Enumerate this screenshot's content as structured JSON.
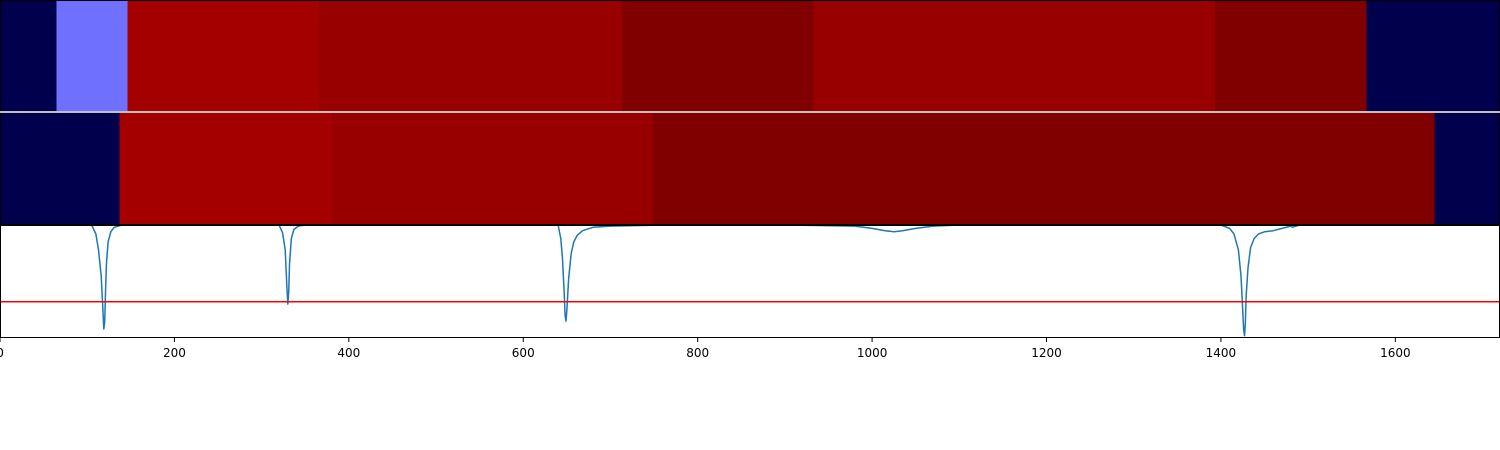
{
  "chart_data": [
    {
      "type": "heatmap",
      "panel": "top-segmentation-band",
      "xlim": [
        0,
        1720
      ],
      "segments": [
        {
          "start": 0,
          "end": 65,
          "color": "#00004c"
        },
        {
          "start": 65,
          "end": 146,
          "color": "#7070ff"
        },
        {
          "start": 146,
          "end": 365,
          "color": "#a40000"
        },
        {
          "start": 365,
          "end": 714,
          "color": "#980000"
        },
        {
          "start": 714,
          "end": 933,
          "color": "#800000"
        },
        {
          "start": 933,
          "end": 1393,
          "color": "#980000"
        },
        {
          "start": 1393,
          "end": 1567,
          "color": "#800000"
        },
        {
          "start": 1567,
          "end": 1720,
          "color": "#00004c"
        }
      ]
    },
    {
      "type": "heatmap",
      "panel": "middle-segmentation-band",
      "xlim": [
        0,
        1720
      ],
      "segments": [
        {
          "start": 0,
          "end": 137,
          "color": "#00004c"
        },
        {
          "start": 137,
          "end": 380,
          "color": "#a40000"
        },
        {
          "start": 380,
          "end": 748,
          "color": "#980000"
        },
        {
          "start": 748,
          "end": 1645,
          "color": "#800000"
        },
        {
          "start": 1645,
          "end": 1720,
          "color": "#00004c"
        }
      ]
    },
    {
      "type": "line",
      "panel": "bottom-signal",
      "xlim": [
        0,
        1720
      ],
      "ylim": [
        -1.0,
        0.0
      ],
      "grid": false,
      "x_ticks": [
        0,
        200,
        400,
        600,
        800,
        1000,
        1200,
        1400,
        1600
      ],
      "x_tick_labels": [
        "0",
        "200",
        "400",
        "600",
        "800",
        "1000",
        "1200",
        "1400",
        "1600"
      ],
      "series": [
        {
          "color": "#1f77b4",
          "x": [
            0,
            105,
            110,
            113,
            116,
            118,
            119,
            120,
            121,
            122,
            124,
            127,
            131,
            140,
            320,
            324,
            327,
            329,
            330,
            331,
            332,
            334,
            337,
            342,
            350,
            640,
            643,
            645,
            647,
            648,
            649,
            650,
            652,
            655,
            658,
            662,
            668,
            680,
            700,
            760,
            900,
            980,
            1000,
            1015,
            1025,
            1035,
            1050,
            1070,
            1100,
            1400,
            1410,
            1415,
            1420,
            1423,
            1425,
            1426,
            1427,
            1428,
            1429,
            1431,
            1434,
            1438,
            1443,
            1450,
            1460,
            1470,
            1480,
            1482,
            1490,
            1720
          ],
          "y": [
            0,
            0,
            -0.08,
            -0.22,
            -0.45,
            -0.75,
            -0.92,
            -0.86,
            -0.6,
            -0.35,
            -0.15,
            -0.06,
            -0.02,
            0,
            0,
            -0.07,
            -0.22,
            -0.55,
            -0.7,
            -0.6,
            -0.35,
            -0.12,
            -0.04,
            -0.01,
            0,
            0,
            -0.12,
            -0.3,
            -0.6,
            -0.8,
            -0.85,
            -0.75,
            -0.48,
            -0.25,
            -0.15,
            -0.09,
            -0.05,
            -0.02,
            -0.01,
            0,
            0,
            -0.01,
            -0.03,
            -0.05,
            -0.06,
            -0.05,
            -0.03,
            -0.01,
            0,
            0,
            -0.03,
            -0.08,
            -0.22,
            -0.45,
            -0.75,
            -0.92,
            -0.98,
            -0.88,
            -0.62,
            -0.38,
            -0.2,
            -0.12,
            -0.08,
            -0.06,
            -0.05,
            -0.03,
            -0.01,
            -0.02,
            0,
            0
          ]
        },
        {
          "color": "#ff0000",
          "x": [
            0,
            1720
          ],
          "y": [
            -0.68,
            -0.68
          ]
        }
      ]
    }
  ]
}
